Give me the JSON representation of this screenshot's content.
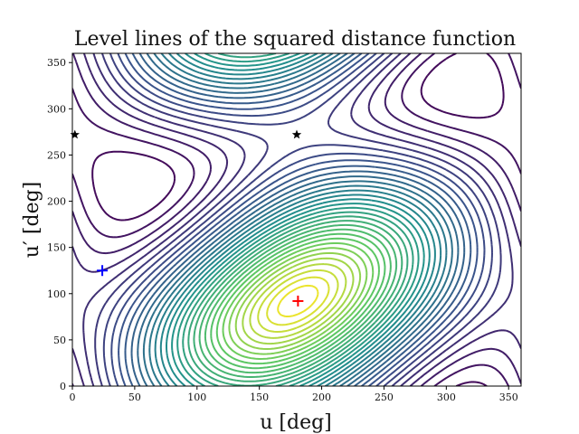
{
  "chart_data": {
    "type": "contour",
    "title": "Level lines of the squared distance function",
    "xlabel": "u [deg]",
    "ylabel": "u′ [deg]",
    "xlim": [
      0,
      360
    ],
    "ylim": [
      0,
      360
    ],
    "x_ticks": [
      0,
      50,
      100,
      150,
      200,
      250,
      300,
      350
    ],
    "y_ticks": [
      0,
      50,
      100,
      150,
      200,
      250,
      300,
      350
    ],
    "grid": false,
    "colormap": [
      "#440154",
      "#3b528b",
      "#21918c",
      "#5ec962",
      "#fde725"
    ],
    "minimum": {
      "u": 181,
      "u_prime": 92
    },
    "saddles": [
      {
        "u": 180,
        "u_prime": 272
      },
      {
        "u": 2,
        "u_prime": 272
      }
    ],
    "markers": [
      {
        "marker": "plus",
        "color": "#ff0000",
        "u": 181,
        "u_prime": 92
      },
      {
        "marker": "plus",
        "color": "#0000ff",
        "u": 24,
        "u_prime": 125
      },
      {
        "marker": "star",
        "color": "#000000",
        "u": 180,
        "u_prime": 272
      },
      {
        "marker": "star",
        "color": "#000000",
        "u": 2,
        "u_prime": 272
      }
    ]
  }
}
